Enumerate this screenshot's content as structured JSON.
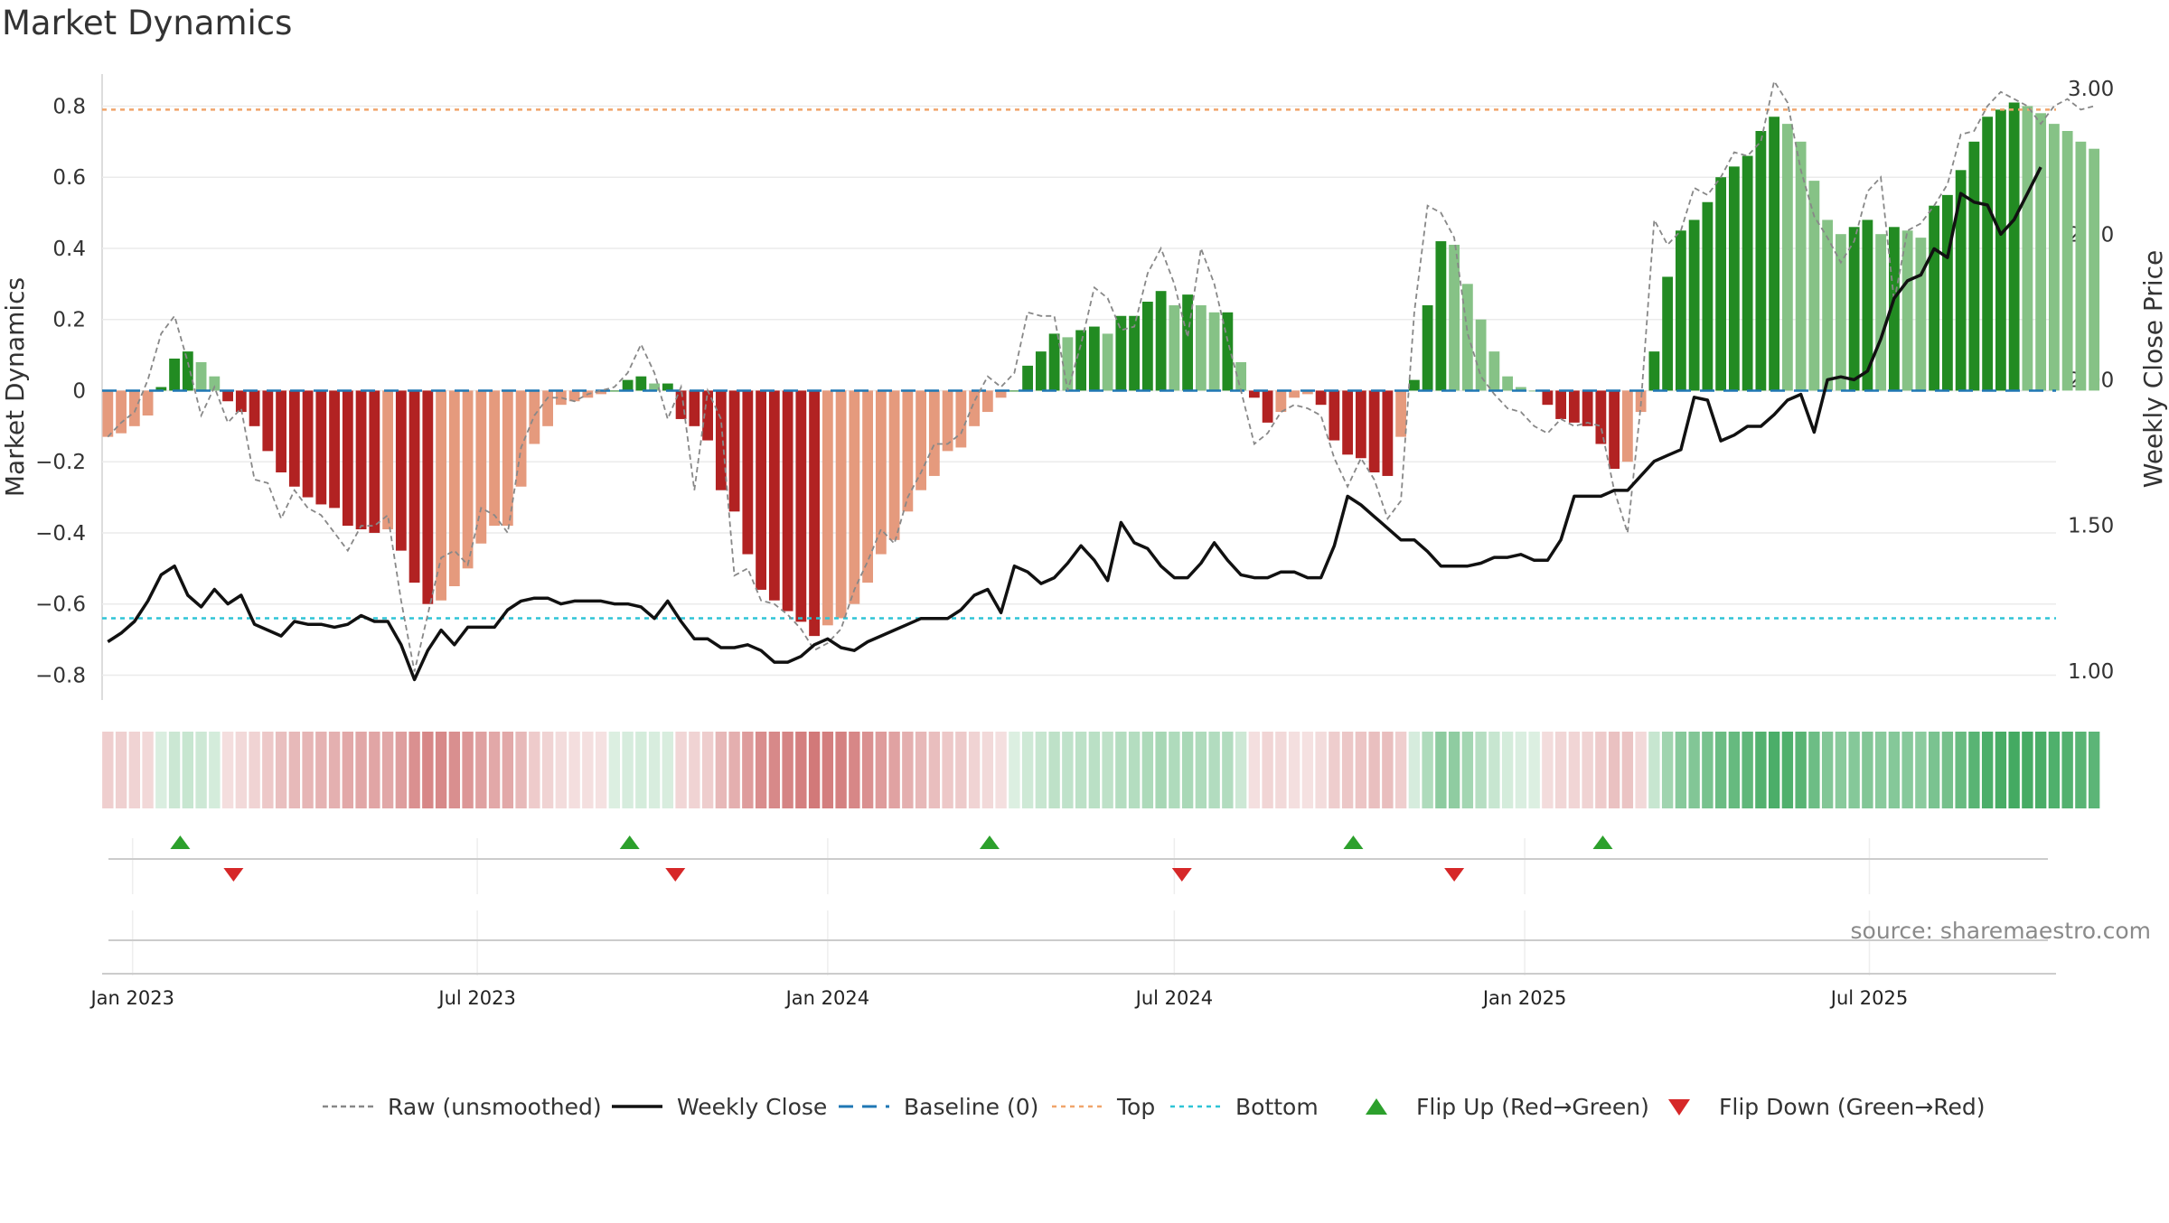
{
  "title": "Market Dynamics",
  "source_text": "source: sharemaestro.com",
  "colors": {
    "green_dark": "#228b22",
    "green_light": "#86c286",
    "red_dark": "#b22222",
    "red_light": "#e59a7d",
    "raw": "#888888",
    "close": "#111111",
    "baseline": "#1f77b4",
    "top": "#f0a56b",
    "bottom": "#2ec4d6",
    "flip_up": "#2ca02c",
    "flip_down": "#d62728"
  },
  "chart_data": {
    "type": "bar",
    "x_start": "2022-12-19",
    "x_step_days": 7,
    "xlim": [
      "2022-12-16",
      "2025-10-07"
    ],
    "xticks": [
      {
        "date": "2023-01-01",
        "label": "Jan 2023"
      },
      {
        "date": "2023-07-01",
        "label": "Jul 2023"
      },
      {
        "date": "2024-01-01",
        "label": "Jan 2024"
      },
      {
        "date": "2024-07-01",
        "label": "Jul 2024"
      },
      {
        "date": "2025-01-01",
        "label": "Jan 2025"
      },
      {
        "date": "2025-07-01",
        "label": "Jul 2025"
      }
    ],
    "y_left": {
      "label": "Market Dynamics",
      "lim": [
        -0.87,
        0.89
      ],
      "ticks": [
        -0.8,
        -0.6,
        -0.4,
        -0.2,
        0,
        0.2,
        0.4,
        0.6,
        0.8
      ],
      "tick_labels": [
        "−0.8",
        "−0.6",
        "−0.4",
        "−0.2",
        "0",
        "0.2",
        "0.4",
        "0.6",
        "0.8"
      ]
    },
    "y_right": {
      "label": "Weekly Close Price",
      "lim": [
        0.9,
        3.05
      ],
      "ticks": [
        1.0,
        1.5,
        2.0,
        2.5,
        3.0
      ],
      "tick_labels": [
        "1.00",
        "1.50",
        "2.00",
        "2.50",
        "3.00"
      ]
    },
    "top_line": 0.79,
    "bottom_line": -0.64,
    "baseline": 0,
    "series": [
      {
        "name": "Market Dynamics",
        "type": "bar",
        "values": [
          -0.13,
          -0.12,
          -0.1,
          -0.07,
          0.01,
          0.09,
          0.11,
          0.08,
          0.04,
          -0.03,
          -0.06,
          -0.1,
          -0.17,
          -0.23,
          -0.27,
          -0.3,
          -0.32,
          -0.33,
          -0.38,
          -0.39,
          -0.4,
          -0.39,
          -0.45,
          -0.54,
          -0.6,
          -0.59,
          -0.55,
          -0.5,
          -0.43,
          -0.38,
          -0.38,
          -0.27,
          -0.15,
          -0.1,
          -0.04,
          -0.03,
          -0.02,
          -0.01,
          0.0,
          0.03,
          0.04,
          0.02,
          0.02,
          -0.08,
          -0.1,
          -0.14,
          -0.28,
          -0.34,
          -0.46,
          -0.56,
          -0.59,
          -0.62,
          -0.65,
          -0.69,
          -0.66,
          -0.64,
          -0.6,
          -0.54,
          -0.46,
          -0.42,
          -0.34,
          -0.28,
          -0.24,
          -0.17,
          -0.16,
          -0.1,
          -0.06,
          -0.02,
          0.0,
          0.07,
          0.11,
          0.16,
          0.15,
          0.17,
          0.18,
          0.16,
          0.21,
          0.21,
          0.25,
          0.28,
          0.24,
          0.27,
          0.24,
          0.22,
          0.22,
          0.08,
          -0.02,
          -0.09,
          -0.06,
          -0.02,
          -0.01,
          -0.04,
          -0.14,
          -0.18,
          -0.19,
          -0.23,
          -0.24,
          -0.13,
          0.03,
          0.24,
          0.42,
          0.41,
          0.3,
          0.2,
          0.11,
          0.04,
          0.01,
          0.0,
          -0.04,
          -0.08,
          -0.09,
          -0.1,
          -0.15,
          -0.22,
          -0.2,
          -0.06,
          0.11,
          0.32,
          0.45,
          0.48,
          0.53,
          0.6,
          0.63,
          0.66,
          0.73,
          0.77,
          0.75,
          0.7,
          0.59,
          0.48,
          0.44,
          0.46,
          0.48,
          0.44,
          0.46,
          0.45,
          0.43,
          0.52,
          0.55,
          0.62,
          0.7,
          0.77,
          0.79,
          0.81,
          0.8,
          0.78,
          0.75,
          0.73,
          0.7,
          0.68
        ]
      },
      {
        "name": "Raw (unsmoothed)",
        "type": "line",
        "values": [
          -0.13,
          -0.09,
          -0.06,
          0.03,
          0.16,
          0.21,
          0.08,
          -0.07,
          0.01,
          -0.09,
          -0.05,
          -0.25,
          -0.26,
          -0.36,
          -0.28,
          -0.33,
          -0.35,
          -0.4,
          -0.45,
          -0.38,
          -0.38,
          -0.35,
          -0.59,
          -0.79,
          -0.63,
          -0.47,
          -0.45,
          -0.49,
          -0.33,
          -0.35,
          -0.4,
          -0.16,
          -0.07,
          -0.02,
          -0.02,
          -0.03,
          -0.01,
          0.0,
          0.01,
          0.05,
          0.13,
          0.05,
          -0.08,
          0.01,
          -0.28,
          0.0,
          -0.08,
          -0.52,
          -0.5,
          -0.59,
          -0.6,
          -0.63,
          -0.67,
          -0.73,
          -0.71,
          -0.67,
          -0.56,
          -0.48,
          -0.39,
          -0.43,
          -0.3,
          -0.23,
          -0.15,
          -0.15,
          -0.12,
          -0.03,
          0.04,
          0.01,
          0.05,
          0.22,
          0.21,
          0.21,
          0.0,
          0.13,
          0.29,
          0.26,
          0.17,
          0.18,
          0.33,
          0.4,
          0.3,
          0.15,
          0.4,
          0.3,
          0.14,
          0.0,
          -0.15,
          -0.12,
          -0.06,
          -0.04,
          -0.05,
          -0.07,
          -0.19,
          -0.27,
          -0.19,
          -0.25,
          -0.36,
          -0.31,
          0.22,
          0.52,
          0.5,
          0.43,
          0.16,
          0.04,
          -0.01,
          -0.05,
          -0.06,
          -0.1,
          -0.12,
          -0.08,
          -0.1,
          -0.09,
          -0.1,
          -0.28,
          -0.4,
          -0.04,
          0.48,
          0.41,
          0.45,
          0.57,
          0.55,
          0.6,
          0.67,
          0.66,
          0.7,
          0.87,
          0.81,
          0.62,
          0.49,
          0.43,
          0.36,
          0.42,
          0.56,
          0.6,
          0.25,
          0.45,
          0.47,
          0.52,
          0.58,
          0.72,
          0.73,
          0.8,
          0.84,
          0.82,
          0.8,
          0.75,
          0.8,
          0.82,
          0.79,
          0.8
        ]
      },
      {
        "name": "Weekly Close",
        "type": "line",
        "axis": "right",
        "values": [
          1.1,
          1.13,
          1.17,
          1.24,
          1.33,
          1.36,
          1.26,
          1.22,
          1.28,
          1.23,
          1.26,
          1.16,
          1.14,
          1.12,
          1.17,
          1.16,
          1.16,
          1.15,
          1.16,
          1.19,
          1.17,
          1.17,
          1.09,
          0.97,
          1.07,
          1.14,
          1.09,
          1.15,
          1.15,
          1.15,
          1.21,
          1.24,
          1.25,
          1.25,
          1.23,
          1.24,
          1.24,
          1.24,
          1.23,
          1.23,
          1.22,
          1.18,
          1.24,
          1.17,
          1.11,
          1.11,
          1.08,
          1.08,
          1.09,
          1.07,
          1.03,
          1.03,
          1.05,
          1.09,
          1.11,
          1.08,
          1.07,
          1.1,
          1.12,
          1.14,
          1.16,
          1.18,
          1.18,
          1.18,
          1.21,
          1.26,
          1.28,
          1.2,
          1.36,
          1.34,
          1.3,
          1.32,
          1.37,
          1.43,
          1.38,
          1.31,
          1.51,
          1.44,
          1.42,
          1.36,
          1.32,
          1.32,
          1.37,
          1.44,
          1.38,
          1.33,
          1.32,
          1.32,
          1.34,
          1.34,
          1.32,
          1.32,
          1.43,
          1.6,
          1.57,
          1.53,
          1.49,
          1.45,
          1.45,
          1.41,
          1.36,
          1.36,
          1.36,
          1.37,
          1.39,
          1.39,
          1.4,
          1.38,
          1.38,
          1.45,
          1.6,
          1.6,
          1.6,
          1.62,
          1.62,
          1.67,
          1.72,
          1.74,
          1.76,
          1.94,
          1.93,
          1.79,
          1.81,
          1.84,
          1.84,
          1.88,
          1.93,
          1.95,
          1.82,
          2.0,
          2.01,
          2.0,
          2.03,
          2.14,
          2.28,
          2.34,
          2.36,
          2.45,
          2.42,
          2.64,
          2.61,
          2.6,
          2.5,
          2.55,
          2.64,
          2.73
        ]
      }
    ],
    "heat_strip": {
      "note": "one cell per week, colored by the sign and magnitude of Market Dynamics"
    },
    "flips": {
      "up": [
        "2023-01-26",
        "2023-09-19",
        "2024-03-26",
        "2024-10-03",
        "2025-02-11"
      ],
      "down": [
        "2023-02-23",
        "2023-10-13",
        "2024-07-05",
        "2024-11-25"
      ]
    },
    "legend": {
      "position": "bottom",
      "entries": [
        {
          "label": "Raw (unsmoothed)",
          "style": "dashed-gray"
        },
        {
          "label": "Weekly Close",
          "style": "solid-black"
        },
        {
          "label": "Baseline (0)",
          "style": "dashed-blue"
        },
        {
          "label": "Top",
          "style": "dotted-orange"
        },
        {
          "label": "Bottom",
          "style": "dotted-cyan"
        },
        {
          "label": "Flip Up (Red→Green)",
          "style": "triangle-up-green"
        },
        {
          "label": "Flip Down (Green→Red)",
          "style": "triangle-down-red"
        }
      ]
    }
  }
}
